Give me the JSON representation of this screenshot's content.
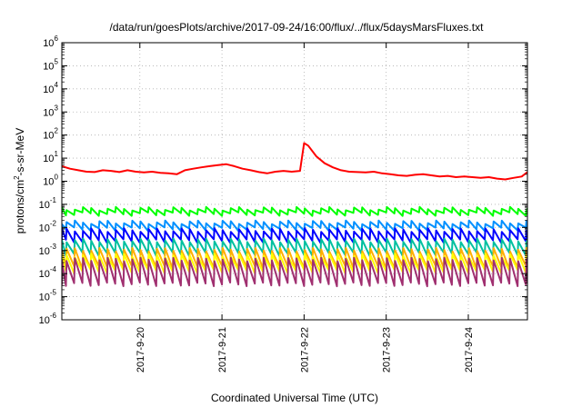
{
  "chart_data": {
    "type": "line",
    "title": "/data/run/goesPlots/archive/2017-09-24/16:00/flux/../flux/5daysMarsFluxes.txt",
    "xlabel": "Coordinated Universal Time (UTC)",
    "ylabel_parts": [
      "protons/cm",
      "2",
      "-s-sr-MeV"
    ],
    "y_scale": "log",
    "ylim": [
      1e-06,
      1000000.0
    ],
    "y_ticks": [
      {
        "base": "10",
        "exp": "-6",
        "value": 1e-06
      },
      {
        "base": "10",
        "exp": "-5",
        "value": 1e-05
      },
      {
        "base": "10",
        "exp": "-4",
        "value": 0.0001
      },
      {
        "base": "10",
        "exp": "-3",
        "value": 0.001
      },
      {
        "base": "10",
        "exp": "-2",
        "value": 0.01
      },
      {
        "base": "10",
        "exp": "-1",
        "value": 0.1
      },
      {
        "base": "10",
        "exp": "0",
        "value": 1
      },
      {
        "base": "10",
        "exp": "1",
        "value": 10
      },
      {
        "base": "10",
        "exp": "2",
        "value": 100
      },
      {
        "base": "10",
        "exp": "3",
        "value": 1000
      },
      {
        "base": "10",
        "exp": "4",
        "value": 10000
      },
      {
        "base": "10",
        "exp": "5",
        "value": 100000
      },
      {
        "base": "10",
        "exp": "6",
        "value": 1000000
      }
    ],
    "x_range_days": [
      19.05,
      24.72
    ],
    "x_ticks": [
      {
        "label": "2017-9-20",
        "value": 20
      },
      {
        "label": "2017-9-21",
        "value": 21
      },
      {
        "label": "2017-9-22",
        "value": 22
      },
      {
        "label": "2017-9-23",
        "value": 23
      },
      {
        "label": "2017-9-24",
        "value": 24
      }
    ],
    "grid": true,
    "series": [
      {
        "color": "#ff0000",
        "x": [
          19.05,
          19.15,
          19.25,
          19.35,
          19.45,
          19.55,
          19.65,
          19.75,
          19.85,
          19.95,
          20.05,
          20.15,
          20.25,
          20.35,
          20.45,
          20.55,
          20.65,
          20.75,
          20.85,
          20.95,
          21.05,
          21.15,
          21.25,
          21.35,
          21.45,
          21.55,
          21.65,
          21.75,
          21.85,
          21.95,
          22.0,
          22.05,
          22.15,
          22.25,
          22.35,
          22.45,
          22.55,
          22.65,
          22.75,
          22.85,
          22.95,
          23.05,
          23.15,
          23.25,
          23.35,
          23.45,
          23.55,
          23.65,
          23.75,
          23.85,
          23.95,
          24.05,
          24.15,
          24.25,
          24.35,
          24.45,
          24.55,
          24.65,
          24.72
        ],
        "y": [
          4.5,
          3.5,
          3.0,
          2.6,
          2.5,
          3.0,
          2.8,
          2.5,
          3.0,
          2.6,
          2.4,
          2.6,
          2.3,
          2.2,
          2.0,
          3.0,
          3.5,
          4.0,
          4.5,
          5.0,
          5.5,
          4.5,
          3.5,
          3.0,
          2.5,
          2.2,
          2.6,
          2.8,
          2.6,
          2.8,
          45,
          35,
          12,
          6.0,
          4.0,
          3.0,
          2.6,
          2.5,
          2.4,
          2.6,
          2.2,
          2.0,
          1.8,
          1.7,
          1.9,
          2.0,
          1.8,
          1.6,
          1.7,
          1.5,
          1.6,
          1.5,
          1.4,
          1.5,
          1.3,
          1.2,
          1.4,
          1.6,
          2.5
        ]
      },
      {
        "color": "#00ff00",
        "base": 0.05,
        "period_days": 0.1,
        "amplitude_ratio": 1.7
      },
      {
        "color": "#0090ff",
        "base": 0.012,
        "period_days": 0.1,
        "amplitude_ratio": 2.0
      },
      {
        "color": "#0000ff",
        "base": 0.0045,
        "period_days": 0.1,
        "amplitude_ratio": 3.0
      },
      {
        "color": "#00c0a0",
        "base": 0.0014,
        "period_days": 0.1,
        "amplitude_ratio": 4.0
      },
      {
        "color": "#ffb000",
        "base": 0.00045,
        "period_days": 0.1,
        "amplitude_ratio": 6.0
      },
      {
        "color": "#ffff00",
        "base": 0.00028,
        "period_days": 0.1,
        "amplitude_ratio": 5.0
      },
      {
        "color": "#a03070",
        "base": 0.00012,
        "period_days": 0.1,
        "amplitude_ratio": 12.0
      }
    ]
  }
}
